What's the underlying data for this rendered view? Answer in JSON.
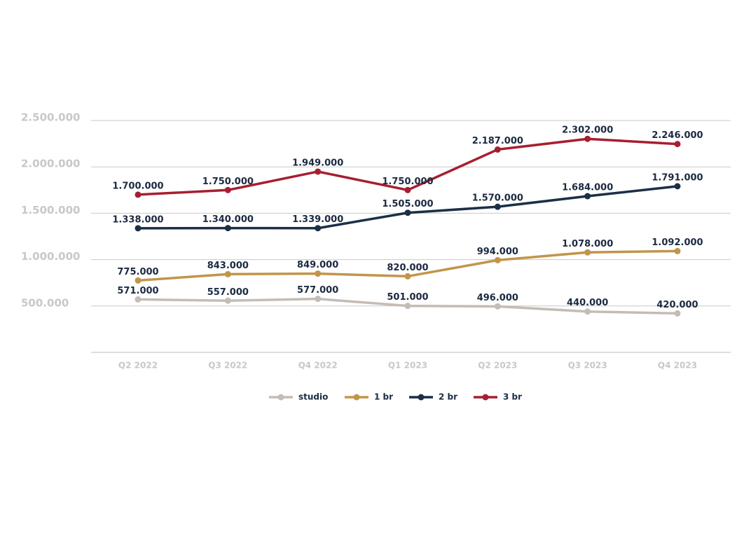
{
  "chart_data": {
    "type": "line",
    "categories": [
      "Q2 2022",
      "Q3 2022",
      "Q4 2022",
      "Q1 2023",
      "Q2 2023",
      "Q3 2023",
      "Q4 2023"
    ],
    "series": [
      {
        "name": "studio",
        "color": "#c4bcb5",
        "values": [
          571000,
          557000,
          577000,
          501000,
          496000,
          440000,
          420000
        ],
        "value_labels": [
          "571.000",
          "557.000",
          "577.000",
          "501.000",
          "496.000",
          "440.000",
          "420.000"
        ]
      },
      {
        "name": "1 br",
        "color": "#c1954a",
        "values": [
          775000,
          843000,
          849000,
          820000,
          994000,
          1078000,
          1092000
        ],
        "value_labels": [
          "775.000",
          "843.000",
          "849.000",
          "820.000",
          "994.000",
          "1.078.000",
          "1.092.000"
        ]
      },
      {
        "name": "2 br",
        "color": "#1b2f47",
        "values": [
          1338000,
          1340000,
          1339000,
          1505000,
          1570000,
          1684000,
          1791000
        ],
        "value_labels": [
          "1.338.000",
          "1.340.000",
          "1.339.000",
          "1.505.000",
          "1.570.000",
          "1.684.000",
          "1.791.000"
        ]
      },
      {
        "name": "3 br",
        "color": "#a61f30",
        "values": [
          1700000,
          1750000,
          1949000,
          1750000,
          2187000,
          2302000,
          2246000
        ],
        "value_labels": [
          "1.700.000",
          "1.750.000",
          "1.949.000",
          "1.750.000",
          "2.187.000",
          "2.302.000",
          "2.246.000"
        ]
      }
    ],
    "ylim": [
      0,
      2500000
    ],
    "yticks": [
      {
        "value": 500000,
        "label": "500.000"
      },
      {
        "value": 1000000,
        "label": "1.000.000"
      },
      {
        "value": 1500000,
        "label": "1.500.000"
      },
      {
        "value": 2000000,
        "label": "2.000.000"
      },
      {
        "value": 2500000,
        "label": "2.500.000"
      }
    ],
    "grid": true,
    "legend": "bottom"
  }
}
